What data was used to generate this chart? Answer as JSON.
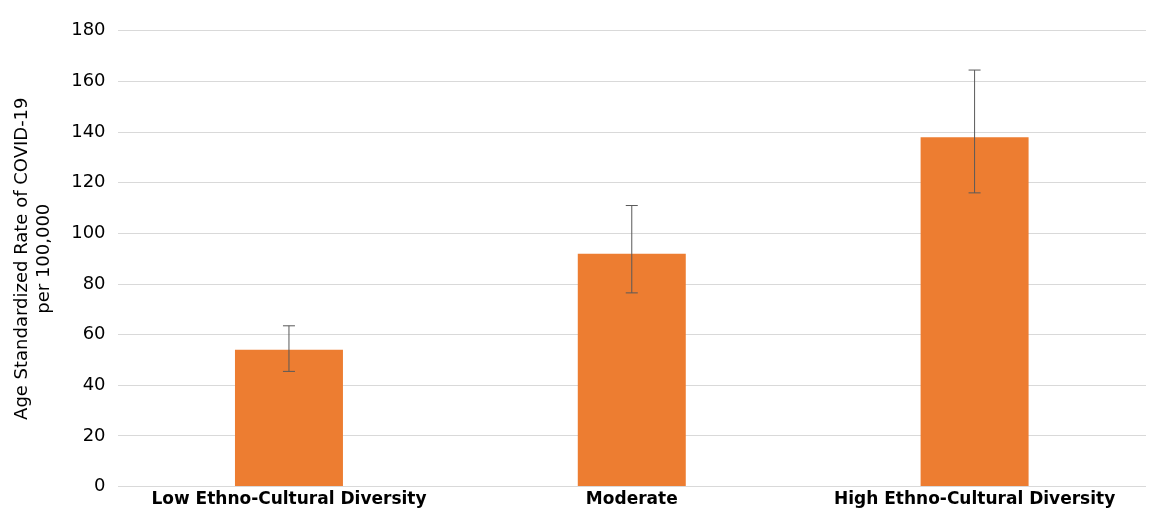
{
  "chart_data": {
    "type": "bar",
    "ylabel": "Age Standardized Rate of COVID-19\nper 100,000",
    "categories": [
      "Low Ethno-Cultural Diversity",
      "Moderate",
      "High Ethno-Cultural Diversity"
    ],
    "values": [
      54,
      92,
      138
    ],
    "errors": [
      [
        45.5,
        63.5
      ],
      [
        76.5,
        111
      ],
      [
        116,
        164.5
      ]
    ],
    "color": "#ed7d31",
    "ylim": [
      0,
      180
    ],
    "yticks": [
      0,
      20,
      40,
      60,
      80,
      100,
      120,
      140,
      160,
      180
    ],
    "grid": "y"
  }
}
